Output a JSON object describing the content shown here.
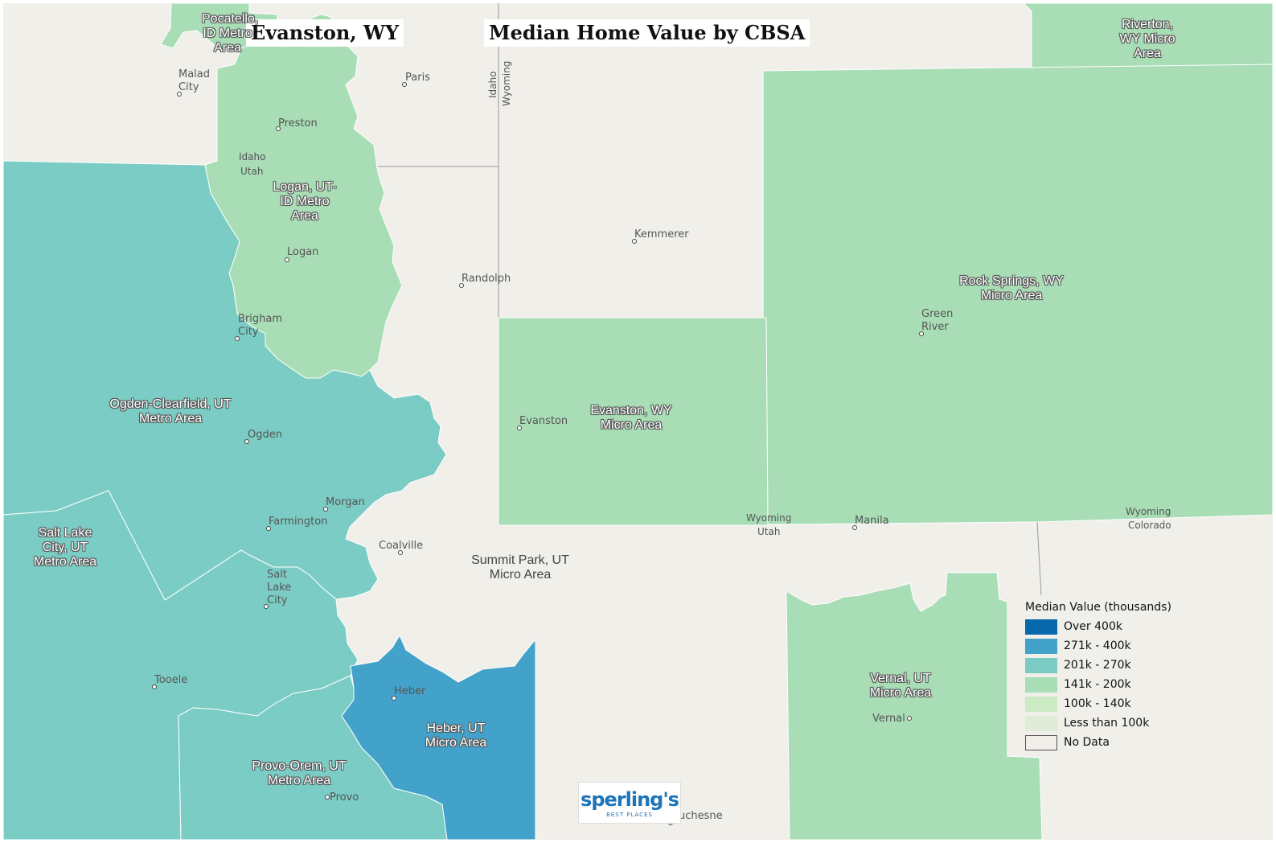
{
  "header": {
    "location_title": "Evanston, WY",
    "map_title": "Median Home Value by CBSA"
  },
  "colors": {
    "background": "#f0efea",
    "over_400k": "#0868ac",
    "r271_400k": "#43a2ca",
    "r201_270k": "#7bccc4",
    "r141_200k": "#a8ddb5",
    "r100_140k": "#ccebc5",
    "less_100k": "#e0ecd8",
    "no_data": "#f0efea",
    "boundary": "#ffffff",
    "state_line": "#9a9a9a"
  },
  "legend": {
    "title": "Median Value (thousands)",
    "items": [
      {
        "label": "Over 400k",
        "color_key": "over_400k"
      },
      {
        "label": "271k - 400k",
        "color_key": "r271_400k"
      },
      {
        "label": "201k - 270k",
        "color_key": "r201_270k"
      },
      {
        "label": "141k - 200k",
        "color_key": "r141_200k"
      },
      {
        "label": "100k - 140k",
        "color_key": "r100_140k"
      },
      {
        "label": "Less than 100k",
        "color_key": "less_100k"
      },
      {
        "label": "No Data",
        "color_key": "no_data"
      }
    ]
  },
  "cbsa_labels": {
    "pocatello": "Pocatello, ID Metro Area",
    "riverton": "Riverton, WY Micro Area",
    "logan": "Logan, UT-ID Metro Area",
    "rock_springs": "Rock Springs, WY Micro Area",
    "ogden": "Ogden-Clearfield, UT Metro Area",
    "evanston": "Evanston, WY Micro Area",
    "salt_lake": "Salt Lake City, UT Metro Area",
    "summit_park": "Summit Park, UT Micro Area",
    "vernal": "Vernal, UT Micro Area",
    "heber": "Heber, UT Micro Area",
    "provo": "Provo-Orem, UT Metro Area"
  },
  "cities": {
    "malad_city": "Malad City",
    "paris": "Paris",
    "preston": "Preston",
    "kemmerer": "Kemmerer",
    "logan": "Logan",
    "randolph": "Randolph",
    "green_river": "Green River",
    "brigham_city": "Brigham City",
    "evanston": "Evanston",
    "ogden": "Ogden",
    "morgan": "Morgan",
    "farmington": "Farmington",
    "manila": "Manila",
    "coalville": "Coalville",
    "salt_lake_city": "Salt Lake City",
    "tooele": "Tooele",
    "heber": "Heber",
    "vernal": "Vernal",
    "provo": "Provo",
    "duchesne": "Duchesne"
  },
  "state_labels": {
    "idaho_utah_1": "Idaho",
    "idaho_utah_2": "Utah",
    "idaho_v": "Idaho",
    "wyoming_v": "Wyoming",
    "wy_ut_1": "Wyoming",
    "wy_ut_2": "Utah",
    "wy_co_1": "Wyoming",
    "wy_co_2": "Colorado"
  },
  "logo": {
    "brand": "sperling's",
    "tagline": "BEST PLACES"
  }
}
